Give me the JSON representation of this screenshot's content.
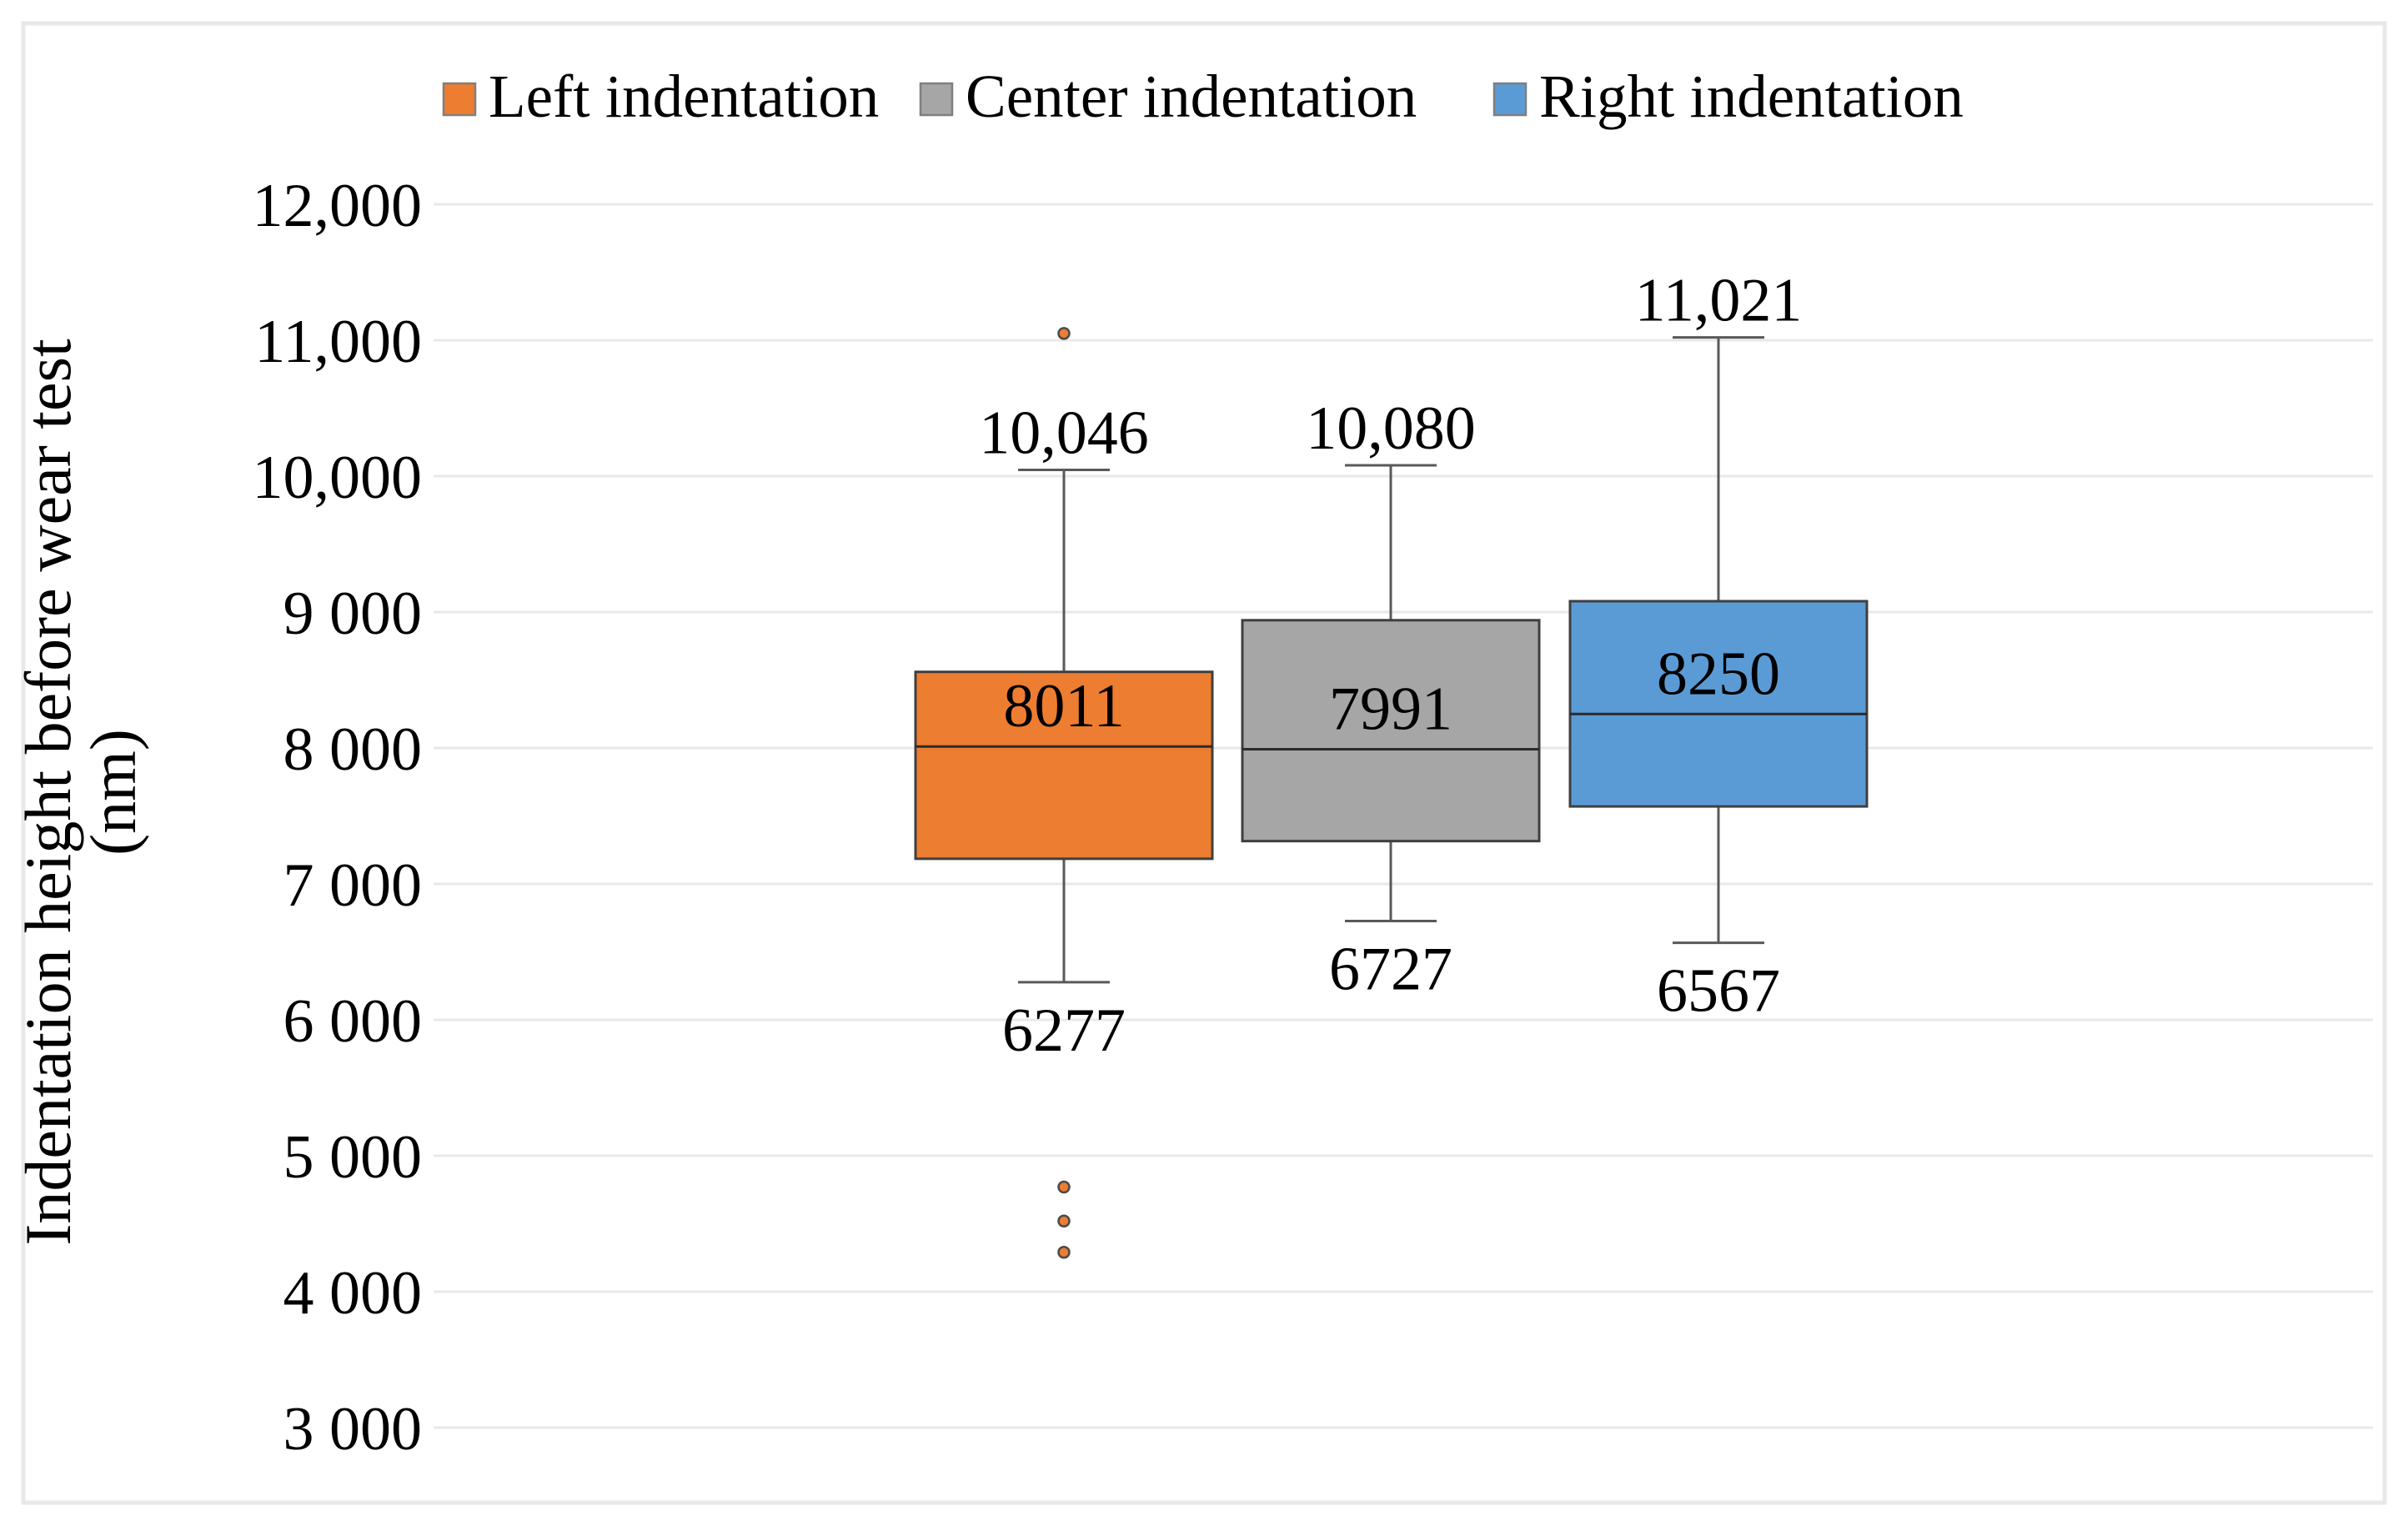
{
  "figure": {
    "type": "box-and-whisker chart",
    "background": "#ffffff",
    "border_color": "#e9e9e9"
  },
  "legend": {
    "position": "top",
    "items": [
      {
        "label": "Left indentation",
        "color": "#ED7D31"
      },
      {
        "label": "Center indentation",
        "color": "#A6A6A6"
      },
      {
        "label": "Right indentation",
        "color": "#5B9BD5"
      }
    ]
  },
  "y_axis": {
    "title_line1": "Indentation height before wear test",
    "title_line2": "(nm)",
    "min": 3000,
    "max": 12000,
    "grid": true,
    "ticks": [
      {
        "label": "12,000",
        "value": 12000
      },
      {
        "label": "11,000",
        "value": 11000
      },
      {
        "label": "10,000",
        "value": 10000
      },
      {
        "label": "9 000",
        "value": 9000
      },
      {
        "label": "8 000",
        "value": 8000
      },
      {
        "label": "7 000",
        "value": 7000
      },
      {
        "label": "6 000",
        "value": 6000
      },
      {
        "label": "5 000",
        "value": 5000
      },
      {
        "label": "4 000",
        "value": 4000
      },
      {
        "label": "3 000",
        "value": 3000
      }
    ]
  },
  "chart_data": {
    "type": "boxplot",
    "title": "",
    "xlabel": "",
    "ylabel": "Indentation height before wear test (nm)",
    "ylim": [
      3000,
      12000
    ],
    "grid": "horizontal",
    "legend_position": "top",
    "series": [
      {
        "name": "Left indentation",
        "color": "#ED7D31",
        "whisker_low": 6277,
        "q1": 7185,
        "median": 8011,
        "q3": 8560,
        "whisker_high": 10046,
        "outliers_high": [
          11050
        ],
        "outliers_low": [
          4770,
          4520,
          4290
        ],
        "labels": {
          "whisker_high": "10,046",
          "median": "8011",
          "whisker_low": "6277"
        }
      },
      {
        "name": "Center indentation",
        "color": "#A6A6A6",
        "whisker_low": 6727,
        "q1": 7315,
        "median": 7991,
        "q3": 8940,
        "whisker_high": 10080,
        "outliers_high": [],
        "outliers_low": [],
        "labels": {
          "whisker_high": "10,080",
          "median": "7991",
          "whisker_low": "6727"
        }
      },
      {
        "name": "Right indentation",
        "color": "#5B9BD5",
        "whisker_low": 6567,
        "q1": 7570,
        "median": 8250,
        "q3": 9080,
        "whisker_high": 11021,
        "outliers_high": [],
        "outliers_low": [],
        "labels": {
          "whisker_high": "11,021",
          "median": "8250",
          "whisker_low": "6567"
        }
      }
    ]
  }
}
